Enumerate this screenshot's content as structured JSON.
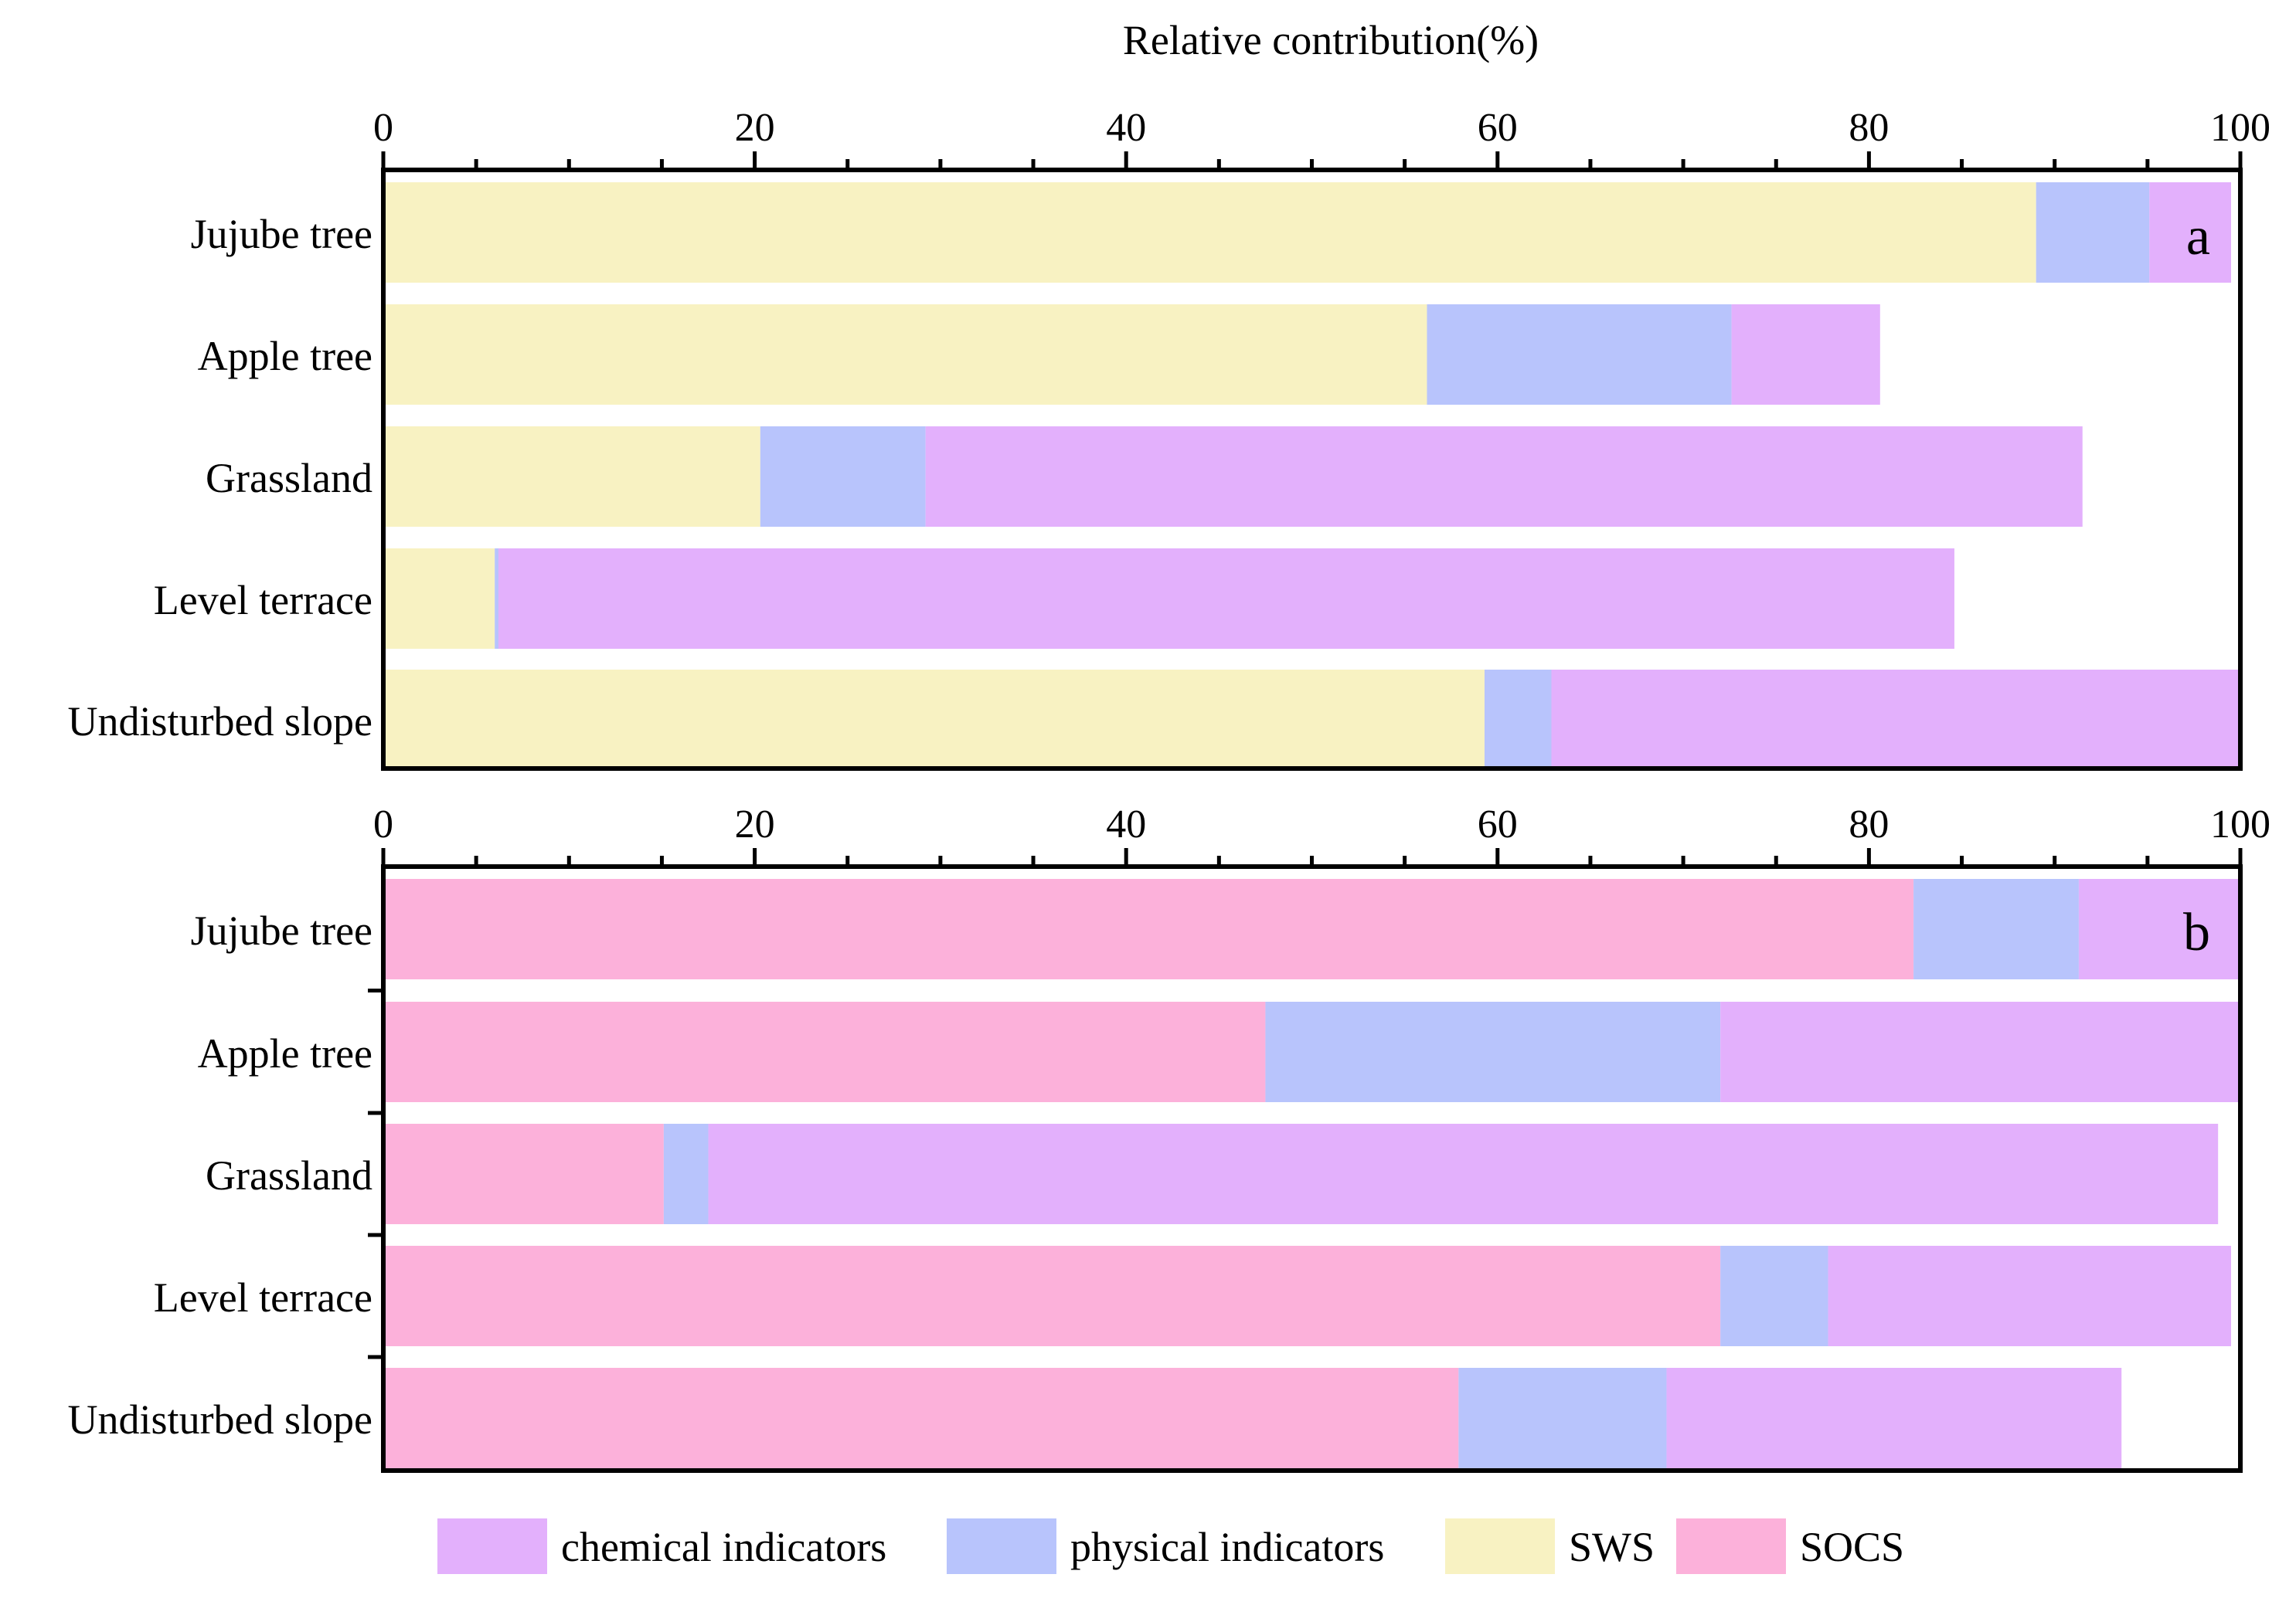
{
  "chart_data": [
    {
      "panel_label": "a",
      "type": "bar",
      "orientation": "horizontal",
      "stacked": true,
      "title": "Relative contribution(%)",
      "xlim": [
        0,
        100
      ],
      "x_ticks": [
        "0",
        "20",
        "40",
        "60",
        "80",
        "100"
      ],
      "categories": [
        "Jujube tree",
        "Apple tree",
        "Grassland",
        "Level terrace",
        "Undisturbed slope"
      ],
      "series": [
        {
          "name": "SWS",
          "values": [
            89.0,
            56.2,
            20.3,
            6.0,
            59.3
          ]
        },
        {
          "name": "physical indicators",
          "values": [
            6.1,
            16.4,
            8.9,
            0.2,
            3.6
          ]
        },
        {
          "name": "chemical indicators",
          "values": [
            4.4,
            8.0,
            62.3,
            78.4,
            37.1
          ]
        }
      ]
    },
    {
      "panel_label": "b",
      "type": "bar",
      "orientation": "horizontal",
      "stacked": true,
      "xlim": [
        0,
        100
      ],
      "x_ticks": [
        "0",
        "20",
        "40",
        "60",
        "80",
        "100"
      ],
      "categories": [
        "Jujube tree",
        "Apple tree",
        "Grassland",
        "Level terrace",
        "Undisturbed slope"
      ],
      "series": [
        {
          "name": "SOCS",
          "values": [
            82.4,
            47.5,
            15.1,
            72.0,
            57.9
          ]
        },
        {
          "name": "physical indicators",
          "values": [
            8.9,
            24.5,
            2.4,
            5.8,
            11.2
          ]
        },
        {
          "name": "chemical indicators",
          "values": [
            8.7,
            28.0,
            81.3,
            21.7,
            24.5
          ]
        }
      ]
    }
  ],
  "legend": {
    "placement": "bottom",
    "items": [
      {
        "label": "chemical indicators",
        "color": "#e3b0fc"
      },
      {
        "label": "physical indicators",
        "color": "#b8c4fc"
      },
      {
        "label": "SWS",
        "color": "#f8f2c2"
      },
      {
        "label": "SOCS",
        "color": "#fcb1da"
      }
    ]
  },
  "colors": {
    "SWS": "#f8f2c2",
    "SOCS": "#fcb1da",
    "physical indicators": "#b8c4fc",
    "chemical indicators": "#e3b0fc"
  }
}
